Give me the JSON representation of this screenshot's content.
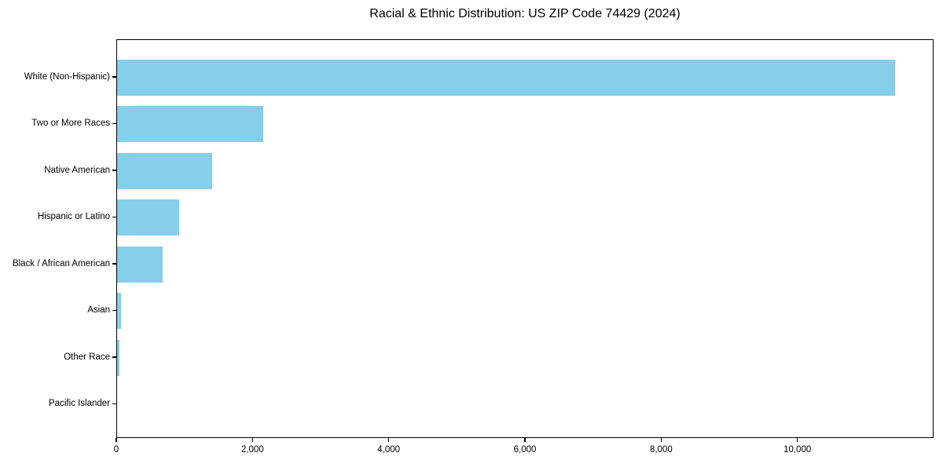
{
  "chart_data": {
    "type": "bar",
    "orientation": "horizontal",
    "title": "Racial & Ethnic Distribution: US ZIP Code 74429 (2024)",
    "categories": [
      "White (Non-Hispanic)",
      "Two or More Races",
      "Native American",
      "Hispanic or Latino",
      "Black / African American",
      "Asian",
      "Other Race",
      "Pacific Islander"
    ],
    "values": [
      11420,
      2140,
      1390,
      910,
      670,
      60,
      35,
      0
    ],
    "xlabel": "",
    "ylabel": "",
    "xlim": [
      0,
      12000
    ],
    "x_ticks": [
      0,
      2000,
      4000,
      6000,
      8000,
      10000
    ],
    "x_tick_labels": [
      "0",
      "2,000",
      "4,000",
      "6,000",
      "8,000",
      "10,000"
    ],
    "grid": false,
    "legend": null,
    "bar_color": "#87CEEB",
    "text_color": "#000000",
    "frame_color": "#000000",
    "background_color": "#ffffff"
  }
}
